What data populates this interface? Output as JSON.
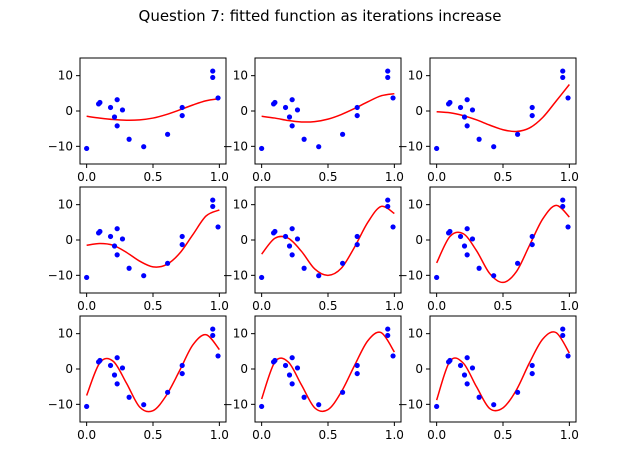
{
  "figure": {
    "title": "Question 7: fitted function as iterations increase"
  },
  "colors": {
    "points": "#0000ff",
    "fit": "#ff0000",
    "axes": "#000000",
    "background": "#ffffff"
  },
  "chart_data": {
    "type": "scatter",
    "layout": {
      "rows": 3,
      "cols": 3
    },
    "xlim": [
      -0.05,
      1.05
    ],
    "ylim": [
      -15,
      15
    ],
    "xticks": [
      0.0,
      0.5,
      1.0
    ],
    "xtick_labels": [
      "0.0",
      "0.5",
      "1.0"
    ],
    "yticks": [
      -10,
      0,
      10
    ],
    "ytick_labels": [
      "−10",
      "0",
      "10"
    ],
    "grid": false,
    "points": [
      {
        "x": 0.0,
        "y": -10.6
      },
      {
        "x": 0.09,
        "y": 2.0
      },
      {
        "x": 0.1,
        "y": 2.4
      },
      {
        "x": 0.18,
        "y": 1.0
      },
      {
        "x": 0.21,
        "y": -1.7
      },
      {
        "x": 0.23,
        "y": 3.2
      },
      {
        "x": 0.23,
        "y": -4.2
      },
      {
        "x": 0.27,
        "y": 0.3
      },
      {
        "x": 0.32,
        "y": -8.0
      },
      {
        "x": 0.43,
        "y": -10.1
      },
      {
        "x": 0.61,
        "y": -6.6
      },
      {
        "x": 0.72,
        "y": -1.3
      },
      {
        "x": 0.72,
        "y": 1.0
      },
      {
        "x": 0.95,
        "y": 11.3
      },
      {
        "x": 0.95,
        "y": 9.5
      },
      {
        "x": 0.99,
        "y": 3.7
      }
    ],
    "panels": [
      {
        "fit": [
          [
            0.0,
            -1.5
          ],
          [
            0.1,
            -2.0
          ],
          [
            0.2,
            -2.4
          ],
          [
            0.3,
            -2.6
          ],
          [
            0.4,
            -2.5
          ],
          [
            0.5,
            -2.0
          ],
          [
            0.6,
            -1.0
          ],
          [
            0.7,
            0.3
          ],
          [
            0.8,
            1.7
          ],
          [
            0.9,
            2.9
          ],
          [
            1.0,
            3.5
          ]
        ]
      },
      {
        "fit": [
          [
            0.0,
            -1.5
          ],
          [
            0.1,
            -2.0
          ],
          [
            0.2,
            -2.7
          ],
          [
            0.3,
            -3.1
          ],
          [
            0.4,
            -3.0
          ],
          [
            0.5,
            -2.3
          ],
          [
            0.6,
            -1.0
          ],
          [
            0.7,
            0.7
          ],
          [
            0.8,
            2.6
          ],
          [
            0.9,
            4.3
          ],
          [
            1.0,
            4.9
          ]
        ]
      },
      {
        "fit": [
          [
            0.0,
            -0.2
          ],
          [
            0.1,
            -0.5
          ],
          [
            0.2,
            -1.3
          ],
          [
            0.3,
            -2.5
          ],
          [
            0.4,
            -4.0
          ],
          [
            0.5,
            -5.3
          ],
          [
            0.6,
            -5.8
          ],
          [
            0.7,
            -4.8
          ],
          [
            0.8,
            -1.8
          ],
          [
            0.9,
            2.8
          ],
          [
            1.0,
            7.5
          ]
        ]
      },
      {
        "fit": [
          [
            0.0,
            -1.5
          ],
          [
            0.1,
            -1.0
          ],
          [
            0.2,
            -1.5
          ],
          [
            0.3,
            -3.5
          ],
          [
            0.4,
            -6.0
          ],
          [
            0.5,
            -7.6
          ],
          [
            0.6,
            -7.0
          ],
          [
            0.7,
            -3.8
          ],
          [
            0.8,
            1.5
          ],
          [
            0.9,
            6.8
          ],
          [
            1.0,
            8.5
          ]
        ]
      },
      {
        "fit": [
          [
            0.0,
            -4.0
          ],
          [
            0.1,
            0.5
          ],
          [
            0.2,
            0.5
          ],
          [
            0.3,
            -3.2
          ],
          [
            0.4,
            -8.2
          ],
          [
            0.5,
            -10.0
          ],
          [
            0.6,
            -8.0
          ],
          [
            0.7,
            -2.0
          ],
          [
            0.8,
            5.0
          ],
          [
            0.9,
            9.5
          ],
          [
            1.0,
            7.5
          ]
        ]
      },
      {
        "fit": [
          [
            0.0,
            -6.5
          ],
          [
            0.1,
            1.0
          ],
          [
            0.2,
            1.8
          ],
          [
            0.3,
            -3.0
          ],
          [
            0.4,
            -9.5
          ],
          [
            0.5,
            -12.0
          ],
          [
            0.6,
            -9.0
          ],
          [
            0.7,
            -1.5
          ],
          [
            0.8,
            6.0
          ],
          [
            0.9,
            9.8
          ],
          [
            1.0,
            6.5
          ]
        ]
      },
      {
        "fit": [
          [
            0.0,
            -7.5
          ],
          [
            0.1,
            1.8
          ],
          [
            0.2,
            2.2
          ],
          [
            0.3,
            -4.0
          ],
          [
            0.4,
            -10.8
          ],
          [
            0.5,
            -11.8
          ],
          [
            0.6,
            -7.5
          ],
          [
            0.7,
            -0.5
          ],
          [
            0.8,
            6.8
          ],
          [
            0.9,
            9.7
          ],
          [
            1.0,
            5.5
          ]
        ]
      },
      {
        "fit": [
          [
            0.0,
            -8.5
          ],
          [
            0.1,
            2.0
          ],
          [
            0.2,
            2.0
          ],
          [
            0.3,
            -4.5
          ],
          [
            0.4,
            -11.0
          ],
          [
            0.5,
            -11.5
          ],
          [
            0.6,
            -6.5
          ],
          [
            0.7,
            1.0
          ],
          [
            0.8,
            8.0
          ],
          [
            0.9,
            10.3
          ],
          [
            1.0,
            4.8
          ]
        ]
      },
      {
        "fit": [
          [
            0.0,
            -8.8
          ],
          [
            0.1,
            2.2
          ],
          [
            0.2,
            1.7
          ],
          [
            0.3,
            -5.0
          ],
          [
            0.4,
            -11.2
          ],
          [
            0.5,
            -11.0
          ],
          [
            0.6,
            -6.0
          ],
          [
            0.7,
            1.8
          ],
          [
            0.8,
            8.5
          ],
          [
            0.9,
            10.3
          ],
          [
            1.0,
            4.5
          ]
        ]
      }
    ]
  }
}
